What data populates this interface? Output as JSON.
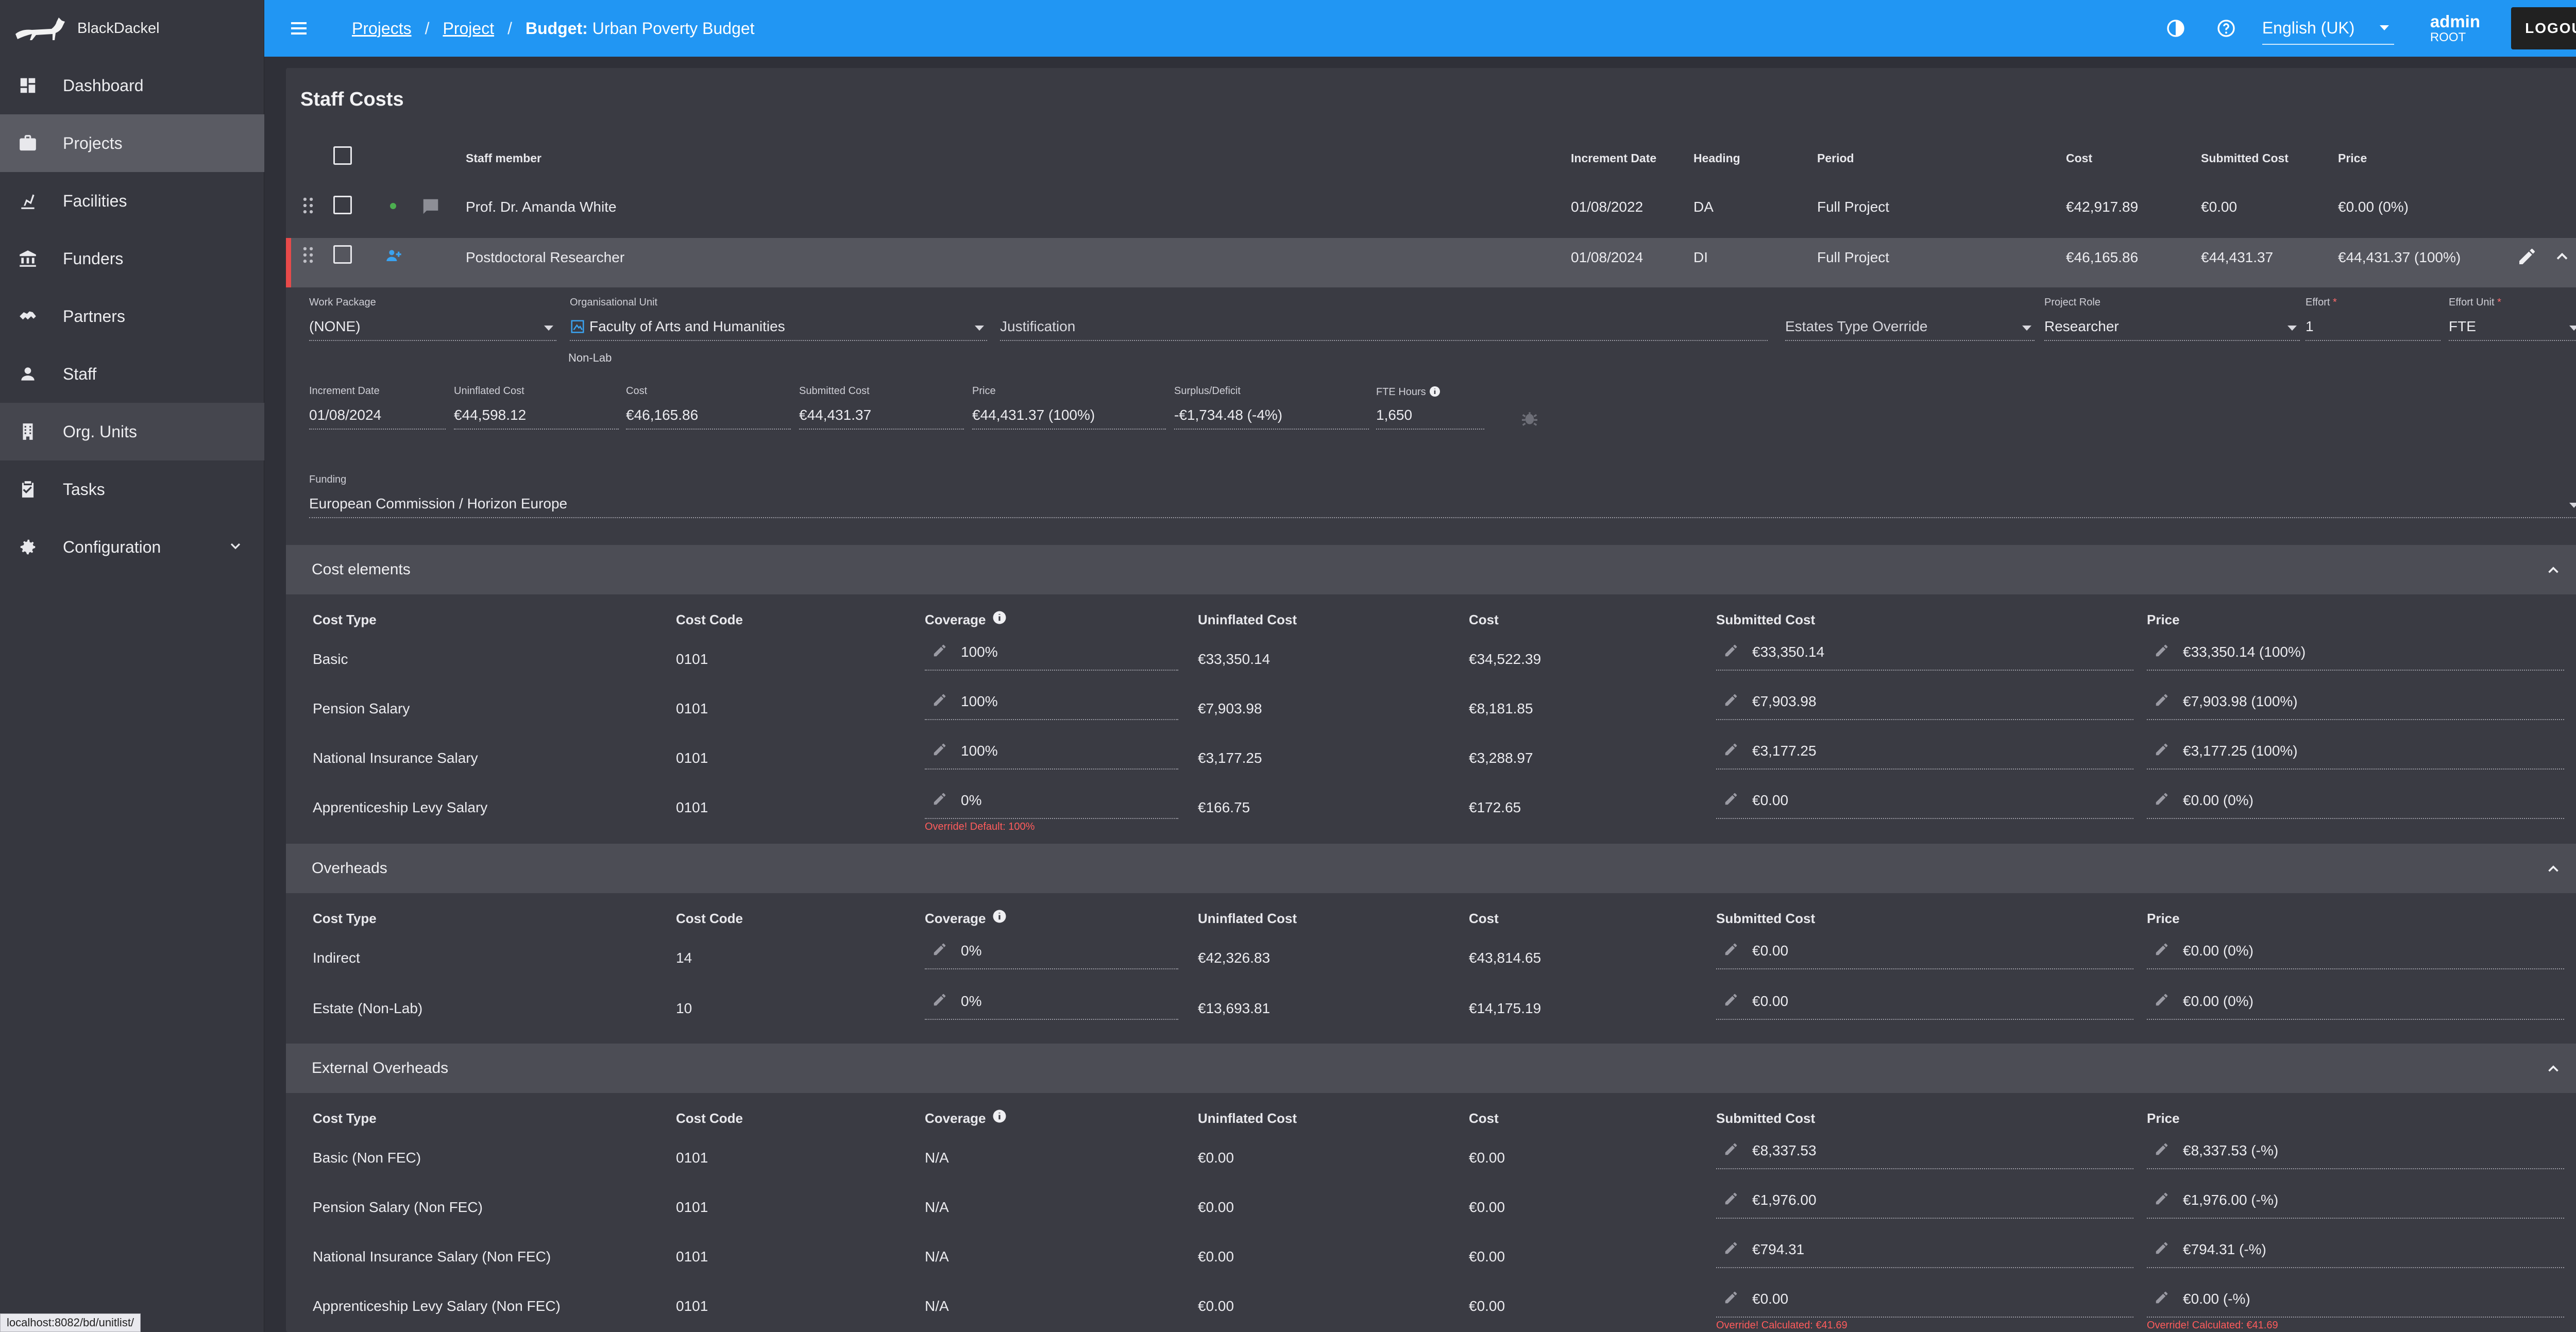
{
  "app": {
    "name": "BlackDackel"
  },
  "sidebar": {
    "items": [
      {
        "label": "Dashboard",
        "icon": "dashboard-icon"
      },
      {
        "label": "Projects",
        "icon": "briefcase-icon"
      },
      {
        "label": "Facilities",
        "icon": "facility-icon"
      },
      {
        "label": "Funders",
        "icon": "bank-icon"
      },
      {
        "label": "Partners",
        "icon": "handshake-icon"
      },
      {
        "label": "Staff",
        "icon": "person-icon"
      },
      {
        "label": "Org. Units",
        "icon": "building-icon"
      },
      {
        "label": "Tasks",
        "icon": "clipboard-check-icon"
      },
      {
        "label": "Configuration",
        "icon": "gear-icon"
      }
    ]
  },
  "topbar": {
    "crumb1": "Projects",
    "crumb2": "Project",
    "sep": "/",
    "budget_prefix": "Budget:",
    "budget_name": "Urban Poverty Budget",
    "language": "English (UK)",
    "user_name": "admin",
    "user_role": "ROOT",
    "logout": "LOGOUT"
  },
  "staff": {
    "title": "Staff Costs",
    "headers": {
      "staff_member": "Staff member",
      "increment_date": "Increment Date",
      "heading": "Heading",
      "period": "Period",
      "cost": "Cost",
      "submitted_cost": "Submitted Cost",
      "price": "Price"
    },
    "rows": [
      {
        "name": "Prof. Dr. Amanda White",
        "increment_date": "01/08/2022",
        "heading": "DA",
        "period": "Full Project",
        "cost": "€42,917.89",
        "submitted_cost": "€0.00",
        "price": "€0.00 (0%)"
      },
      {
        "name": "Postdoctoral Researcher",
        "increment_date": "01/08/2024",
        "heading": "DI",
        "period": "Full Project",
        "cost": "€46,165.86",
        "submitted_cost": "€44,431.37",
        "price": "€44,431.37 (100%)"
      }
    ]
  },
  "detail": {
    "work_package": {
      "label": "Work Package",
      "value": "(NONE)"
    },
    "org_unit": {
      "label": "Organisational Unit",
      "value": "Faculty of Arts and Humanities",
      "sub": "Non-Lab"
    },
    "justification": {
      "placeholder": "Justification"
    },
    "estates_override": {
      "placeholder": "Estates Type Override"
    },
    "project_role": {
      "label": "Project Role",
      "value": "Researcher"
    },
    "effort": {
      "label": "Effort",
      "value": "1",
      "req": "*"
    },
    "effort_unit": {
      "label": "Effort Unit",
      "value": "FTE",
      "req": "*"
    },
    "increment_date": {
      "label": "Increment Date",
      "value": "01/08/2024"
    },
    "uninflated_cost": {
      "label": "Uninflated Cost",
      "value": "€44,598.12"
    },
    "cost": {
      "label": "Cost",
      "value": "€46,165.86"
    },
    "submitted_cost": {
      "label": "Submitted Cost",
      "value": "€44,431.37"
    },
    "price": {
      "label": "Price",
      "value": "€44,431.37 (100%)"
    },
    "surplus": {
      "label": "Surplus/Deficit",
      "value": "-€1,734.48 (-4%)"
    },
    "fte_hours": {
      "label": "FTE Hours",
      "value": "1,650"
    },
    "funding": {
      "label": "Funding",
      "value": "European Commission / Horizon Europe"
    }
  },
  "table_headers": {
    "cost_type": "Cost Type",
    "cost_code": "Cost Code",
    "coverage": "Coverage",
    "uninflated_cost": "Uninflated Cost",
    "cost": "Cost",
    "submitted_cost": "Submitted Cost",
    "price": "Price"
  },
  "cost_elements": {
    "title": "Cost elements",
    "rows": [
      {
        "type": "Basic",
        "code": "0101",
        "coverage": "100%",
        "uninflated": "€33,350.14",
        "cost": "€34,522.39",
        "submitted": "€33,350.14",
        "price": "€33,350.14 (100%)"
      },
      {
        "type": "Pension Salary",
        "code": "0101",
        "coverage": "100%",
        "uninflated": "€7,903.98",
        "cost": "€8,181.85",
        "submitted": "€7,903.98",
        "price": "€7,903.98 (100%)"
      },
      {
        "type": "National Insurance Salary",
        "code": "0101",
        "coverage": "100%",
        "uninflated": "€3,177.25",
        "cost": "€3,288.97",
        "submitted": "€3,177.25",
        "price": "€3,177.25 (100%)"
      },
      {
        "type": "Apprenticeship Levy Salary",
        "code": "0101",
        "coverage": "0%",
        "coverage_warn": "Override! Default: 100%",
        "uninflated": "€166.75",
        "cost": "€172.65",
        "submitted": "€0.00",
        "price": "€0.00 (0%)"
      }
    ]
  },
  "overheads": {
    "title": "Overheads",
    "rows": [
      {
        "type": "Indirect",
        "code": "14",
        "coverage": "0%",
        "uninflated": "€42,326.83",
        "cost": "€43,814.65",
        "submitted": "€0.00",
        "price": "€0.00 (0%)"
      },
      {
        "type": "Estate (Non-Lab)",
        "code": "10",
        "coverage": "0%",
        "uninflated": "€13,693.81",
        "cost": "€14,175.19",
        "submitted": "€0.00",
        "price": "€0.00 (0%)"
      }
    ]
  },
  "external_overheads": {
    "title": "External Overheads",
    "rows": [
      {
        "type": "Basic (Non FEC)",
        "code": "0101",
        "coverage": "N/A",
        "uninflated": "€0.00",
        "cost": "€0.00",
        "submitted": "€8,337.53",
        "price": "€8,337.53 (-%)"
      },
      {
        "type": "Pension Salary (Non FEC)",
        "code": "0101",
        "coverage": "N/A",
        "uninflated": "€0.00",
        "cost": "€0.00",
        "submitted": "€1,976.00",
        "price": "€1,976.00 (-%)"
      },
      {
        "type": "National Insurance Salary (Non FEC)",
        "code": "0101",
        "coverage": "N/A",
        "uninflated": "€0.00",
        "cost": "€0.00",
        "submitted": "€794.31",
        "price": "€794.31 (-%)"
      },
      {
        "type": "Apprenticeship Levy Salary (Non FEC)",
        "code": "0101",
        "coverage": "N/A",
        "uninflated": "€0.00",
        "cost": "€0.00",
        "submitted": "€0.00",
        "price": "€0.00 (-%)",
        "submitted_warn": "Override! Calculated: €41.69",
        "price_warn": "Override! Calculated: €41.69"
      }
    ]
  },
  "statusbar": {
    "url": "localhost:8082/bd/unitlist/"
  },
  "colors": {
    "topbar": "#2196f3",
    "sidebar": "#36373f",
    "selected_row_accent": "#e84a4a",
    "warning": "#ff5c5c"
  }
}
